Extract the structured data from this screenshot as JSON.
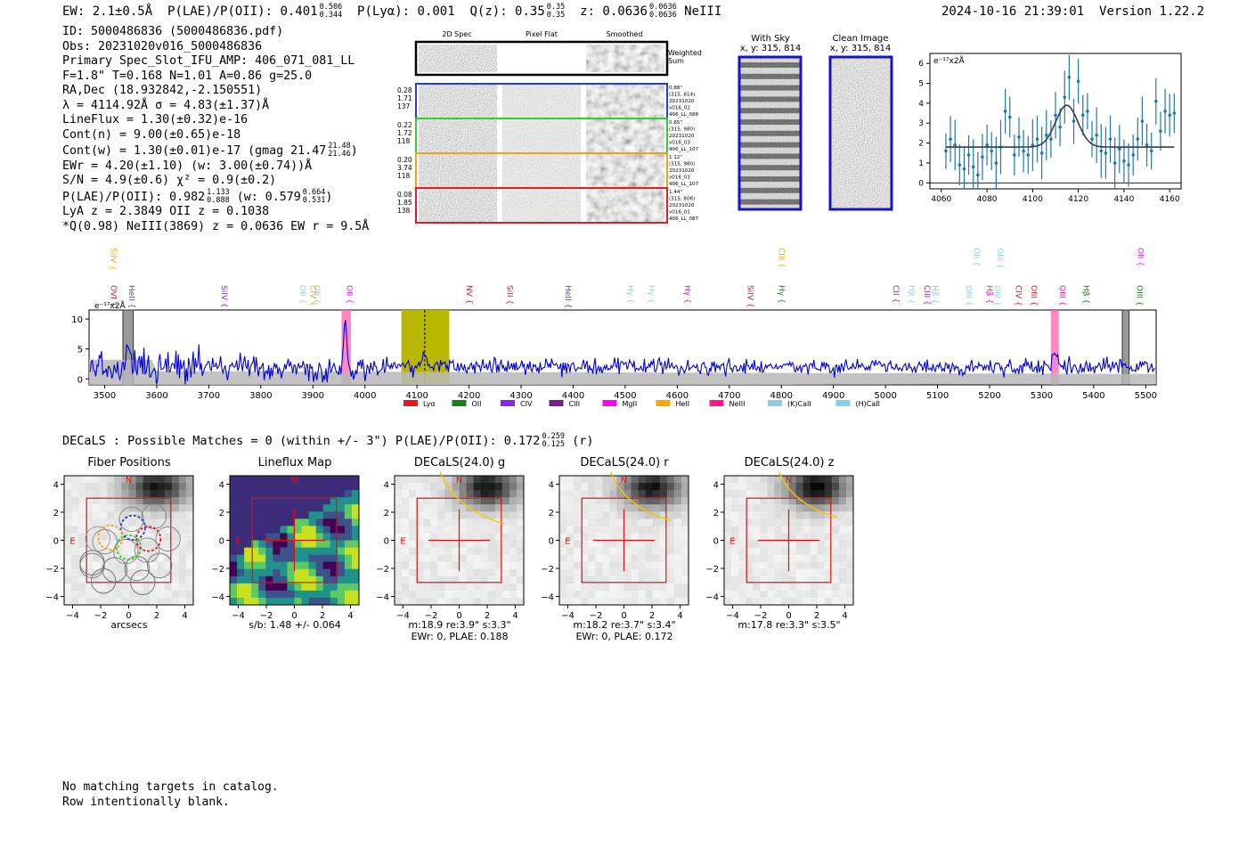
{
  "header": {
    "ew": "EW: 2.1±0.5Å",
    "plae_label": "P(LAE)/P(OII): 0.401",
    "plae_hi": "0.506",
    "plae_lo": "0.344",
    "plya": "P(Lyα): 0.001",
    "qz_label": "Q(z): 0.35",
    "qz_hi": "0.35",
    "qz_lo": "0.35",
    "z_label": "z: 0.0636",
    "z_hi": "0.0636",
    "z_lo": "0.0636",
    "line": "NeIII",
    "timestamp": "2024-10-16 21:39:01",
    "version": "Version 1.22.2"
  },
  "info": {
    "l1": "ID: 5000486836 (5000486836.pdf)",
    "l2": "Obs: 20231020v016_5000486836",
    "l3": "Primary Spec_Slot_IFU_AMP: 406_071_081_LL",
    "l4": "F=1.8\"  T=0.168  N=1.01  A=0.86  g=25.0",
    "l5": "RA,Dec (18.932842,-2.150551)",
    "l6": "λ = 4114.92Å  σ = 4.83(±1.37)Å",
    "l7": "LineFlux = 1.30(±0.32)e-16",
    "l8": "Cont(n) = 9.00(±0.65)e-18",
    "l9": "Cont(w) = 1.30(±0.01)e-17 (gmag 21.47",
    "l9_hi": "21.48",
    "l9_lo": "21.46",
    "l9_end": ")",
    "l10": "EWr = 4.20(±1.10) (w: 3.00(±0.74))Å",
    "l11": "S/N = 4.9(±0.6)  χ² = 0.9(±0.2)",
    "l12": "P(LAE)/P(OII): 0.982",
    "l12_hi": "1.133",
    "l12_lo": "0.888",
    "l12_mid": " (w: 0.579",
    "l12_hi2": "0.664",
    "l12_lo2": "0.531",
    "l12_end": ")",
    "l13": "LyA z = 2.3849   OII z = 0.1038",
    "l14": "*Q(0.98) NeIII(3869) z = 0.0636  EW r = 9.5Å"
  },
  "stamps": {
    "col_2d": "2D Spec",
    "col_flat": "Pixel Flat",
    "col_smooth": "Smoothed",
    "weighted": "Weighted Sum",
    "rows": [
      {
        "left": [
          "0.28",
          "1.71",
          "137"
        ],
        "right": [
          "0.88\"",
          "(315, 814)",
          "20231020",
          "v016_02",
          "406_LL_088"
        ],
        "color": "#1f3fd8"
      },
      {
        "left": [
          "0.22",
          "1.72",
          "118"
        ],
        "right": [
          "0.65\"",
          "(315, 980)",
          "20231020",
          "v016_03",
          "406_LL_107"
        ],
        "color": "#33cc33"
      },
      {
        "left": [
          "0.20",
          "3.74",
          "118"
        ],
        "right": [
          "1.12\"",
          "(315, 980)",
          "20231020",
          "v016_01",
          "406_LL_107"
        ],
        "color": "#f0a020"
      },
      {
        "left": [
          "0.08",
          "1.85",
          "138"
        ],
        "right": [
          "1.44\"",
          "(315, 806)",
          "20231020",
          "v016_01",
          "406_LL_087"
        ],
        "color": "#e02020"
      }
    ]
  },
  "sky": {
    "with_sky": "With Sky",
    "with_sky_xy": "x, y: 315, 814",
    "clean": "Clean Image",
    "clean_xy": "x, y: 315, 814"
  },
  "zoom_chart": {
    "unit_label": "e⁻¹⁷x2Å",
    "xticks": [
      "4060",
      "4080",
      "4100",
      "4120",
      "4140",
      "4160"
    ],
    "yticks": [
      "0",
      "1",
      "2",
      "3",
      "4",
      "5",
      "6"
    ]
  },
  "spectrum": {
    "unit_label": "e⁻¹⁷x2Å",
    "xticks": [
      "3500",
      "3600",
      "3700",
      "3800",
      "3900",
      "4000",
      "4100",
      "4200",
      "4300",
      "4400",
      "4500",
      "4600",
      "4700",
      "4800",
      "4900",
      "5000",
      "5100",
      "5200",
      "5300",
      "5400",
      "5500"
    ],
    "yticks": [
      "0",
      "5",
      "10"
    ],
    "legend": [
      {
        "label": "Lyα",
        "color": "#e41a1c"
      },
      {
        "label": "OII",
        "color": "#1a7f1a"
      },
      {
        "label": "CIV",
        "color": "#8a2be2"
      },
      {
        "label": "CIII",
        "color": "#7b1a8a"
      },
      {
        "label": "MgII",
        "color": "#ff00ff"
      },
      {
        "label": "HeII",
        "color": "#ffa500"
      },
      {
        "label": "NeIII",
        "color": "#ff1493"
      },
      {
        "label": "(K)CaII",
        "color": "#87ceeb"
      },
      {
        "label": "(H)CaII",
        "color": "#87ceeb"
      }
    ],
    "line_labels": [
      {
        "t": "SiIV",
        "w": 3507,
        "row": "top",
        "c": "#ffa500"
      },
      {
        "t": "OVI",
        "w": 3507,
        "row": "bot",
        "c": "#e41a1c"
      },
      {
        "t": "HeII",
        "w": 3542,
        "row": "bot",
        "c": "#8a2be2"
      },
      {
        "t": "SiIV",
        "w": 3720,
        "row": "bot",
        "c": "#8a2be2"
      },
      {
        "t": "OII",
        "w": 3870,
        "row": "bot",
        "c": "#87ceeb"
      },
      {
        "t": "CIV",
        "w": 3890,
        "row": "bot",
        "c": "#ffa500"
      },
      {
        "t": "OII",
        "w": 3898,
        "row": "bot",
        "c": "#87ceeb"
      },
      {
        "t": "OII",
        "w": 3960,
        "row": "bot",
        "c": "#ff00ff"
      },
      {
        "t": "NV",
        "w": 4190,
        "row": "bot",
        "c": "#e41a1c"
      },
      {
        "t": "SiII",
        "w": 4268,
        "row": "bot",
        "c": "#e41a1c"
      },
      {
        "t": "HeII",
        "w": 4380,
        "row": "bot",
        "c": "#8a2be2"
      },
      {
        "t": "Hγ",
        "w": 4500,
        "row": "bot",
        "c": "#87ceeb"
      },
      {
        "t": "Hγ",
        "w": 4540,
        "row": "bot",
        "c": "#87ceeb"
      },
      {
        "t": "Hγ",
        "w": 4610,
        "row": "bot",
        "c": "#ff00ff"
      },
      {
        "t": "SiIV",
        "w": 4730,
        "row": "bot",
        "c": "#e41a1c"
      },
      {
        "t": "CIII",
        "w": 4790,
        "row": "top",
        "c": "#ffa500"
      },
      {
        "t": "Hγ",
        "w": 4790,
        "row": "bot",
        "c": "#1a7f1a"
      },
      {
        "t": "CII",
        "w": 5010,
        "row": "bot",
        "c": "#8a2be2"
      },
      {
        "t": "Hβ",
        "w": 5040,
        "row": "bot",
        "c": "#87ceeb"
      },
      {
        "t": "CIII",
        "w": 5070,
        "row": "bot",
        "c": "#8a2be2"
      },
      {
        "t": "Hβ",
        "w": 5085,
        "row": "bot",
        "c": "#87ceeb"
      },
      {
        "t": "OII",
        "w": 5165,
        "row": "top",
        "c": "#87ceeb"
      },
      {
        "t": "OIII",
        "w": 5150,
        "row": "bot",
        "c": "#87ceeb"
      },
      {
        "t": "Hβ",
        "w": 5190,
        "row": "bot",
        "c": "#ff1493"
      },
      {
        "t": "OIII",
        "w": 5210,
        "row": "top",
        "c": "#87ceeb"
      },
      {
        "t": "OIII",
        "w": 5205,
        "row": "bot",
        "c": "#87ceeb"
      },
      {
        "t": "CIV",
        "w": 5245,
        "row": "bot",
        "c": "#e41a1c"
      },
      {
        "t": "OIII",
        "w": 5275,
        "row": "bot",
        "c": "#e41a1c"
      },
      {
        "t": "OIII",
        "w": 5330,
        "row": "bot",
        "c": "#ff1493"
      },
      {
        "t": "Hβ",
        "w": 5375,
        "row": "bot",
        "c": "#1a7f1a"
      },
      {
        "t": "OII",
        "w": 5480,
        "row": "top",
        "c": "#ff00ff"
      },
      {
        "t": "OIII",
        "w": 5478,
        "row": "bot",
        "c": "#1a7f1a"
      }
    ]
  },
  "chart_data": [
    {
      "type": "line",
      "title": "",
      "ylabel": "e⁻¹⁷x2Å",
      "xlabel": "",
      "xlim": [
        3470,
        5520
      ],
      "ylim": [
        -1,
        11.5
      ],
      "x": [
        3500,
        3540,
        3570,
        3600,
        3700,
        3800,
        3900,
        3960,
        4000,
        4114.9,
        4200,
        4300,
        4500,
        4800,
        5000,
        5200,
        5330,
        5400,
        5500
      ],
      "series": [
        {
          "name": "flux",
          "values": [
            2,
            6,
            1,
            3,
            2.5,
            2.2,
            2,
            10,
            1.5,
            4,
            2,
            2.5,
            2.4,
            2.2,
            2.4,
            2.5,
            4,
            2.2,
            2.3
          ]
        }
      ],
      "highlights": [
        {
          "label": "NeIII",
          "range": [
            3860,
            3880
          ]
        },
        {
          "label": "fit window",
          "range": [
            4070,
            4160
          ]
        },
        {
          "label": "OIII",
          "range": [
            5320,
            5335
          ]
        }
      ]
    },
    {
      "type": "scatter",
      "title": "",
      "ylabel": "e⁻¹⁷x2Å",
      "xlim": [
        4055,
        4165
      ],
      "ylim": [
        -0.3,
        6.5
      ],
      "x": [
        4062,
        4064,
        4066,
        4068,
        4070,
        4072,
        4074,
        4076,
        4078,
        4080,
        4082,
        4084,
        4086,
        4088,
        4090,
        4092,
        4094,
        4096,
        4098,
        4100,
        4102,
        4104,
        4106,
        4108,
        4110,
        4112,
        4114,
        4116,
        4118,
        4120,
        4122,
        4124,
        4126,
        4128,
        4130,
        4132,
        4134,
        4136,
        4138,
        4140,
        4142,
        4144,
        4146,
        4148,
        4150,
        4152,
        4154,
        4156,
        4158,
        4160,
        4162
      ],
      "series": [
        {
          "name": "data",
          "values": [
            1.6,
            2.2,
            1.9,
            0.9,
            0.7,
            1.4,
            0.8,
            0.4,
            1.3,
            1.9,
            1.6,
            1.0,
            1.8,
            3.6,
            3.3,
            1.4,
            2.3,
            1.6,
            1.4,
            1.9,
            2.2,
            1.5,
            2.4,
            2.2,
            3.4,
            2.8,
            4.3,
            5.3,
            3.1,
            5.1,
            3.4,
            3.6,
            2.2,
            2.4,
            1.6,
            1.5,
            2.2,
            1.0,
            1.7,
            1.1,
            0.9,
            1.4,
            2.2,
            3.1,
            1.9,
            1.6,
            4.1,
            2.6,
            3.6,
            3.4,
            3.5
          ]
        },
        {
          "name": "gaussian fit",
          "center": 4114.92,
          "sigma": 4.83,
          "amp": 2.1,
          "base": 1.8
        }
      ]
    }
  ],
  "decals": {
    "title": "DECaLS : Possible Matches = 0 (within +/- 3\")  P(LAE)/P(OII): 0.172",
    "hi": "0.259",
    "lo": "0.125",
    "band": "(r)",
    "panels": [
      {
        "title": "Fiber Positions",
        "cap1": "arcsecs",
        "cap2": "",
        "cap3": ""
      },
      {
        "title": "Lineflux Map",
        "cap1": "s/b: 1.48 +/- 0.064",
        "cap2": "",
        "cap3": ""
      },
      {
        "title": "DECaLS(24.0) g",
        "cap1": "m:18.9  re:3.9\"  s:3.3\"",
        "cap2": "EWr: 0, PLAE: 0.188",
        "cap3": ""
      },
      {
        "title": "DECaLS(24.0) r",
        "cap1": "m:18.2  re:3.7\"  s:3.4\"",
        "cap2": "EWr: 0, PLAE: 0.172",
        "cap3": ""
      },
      {
        "title": "DECaLS(24.0) z",
        "cap1": "m:17.8  re:3.3\"  s:3.5\"",
        "cap2": "",
        "cap3": ""
      }
    ],
    "xticks": [
      "−4",
      "−2",
      "0",
      "2",
      "4"
    ],
    "yticks": [
      "4",
      "2",
      "0",
      "−2",
      "−4"
    ],
    "north": "N",
    "east": "E"
  },
  "footer": {
    "l1": "No matching targets in catalog.",
    "l2": "Row intentionally blank."
  }
}
